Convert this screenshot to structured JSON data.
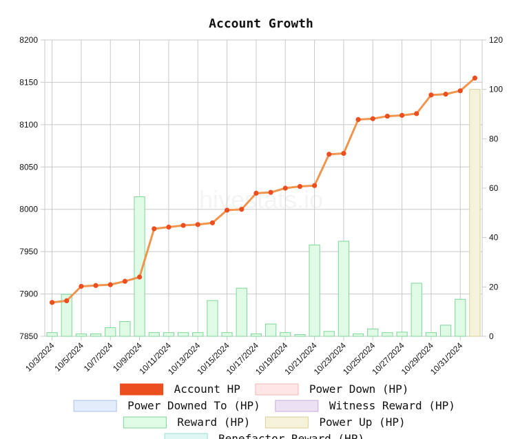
{
  "chart_data": {
    "type": "bar+line",
    "title": "Account Growth",
    "watermark": "hivestats.io",
    "x": [
      "10/3/2024",
      "10/4/2024",
      "10/5/2024",
      "10/6/2024",
      "10/7/2024",
      "10/8/2024",
      "10/9/2024",
      "10/10/2024",
      "10/11/2024",
      "10/12/2024",
      "10/13/2024",
      "10/14/2024",
      "10/15/2024",
      "10/16/2024",
      "10/17/2024",
      "10/18/2024",
      "10/19/2024",
      "10/20/2024",
      "10/21/2024",
      "10/22/2024",
      "10/23/2024",
      "10/24/2024",
      "10/25/2024",
      "10/26/2024",
      "10/27/2024",
      "10/28/2024",
      "10/29/2024",
      "10/30/2024",
      "10/31/2024",
      "11/1/2024"
    ],
    "x_tick_labels": [
      "10/3/2024",
      "10/5/2024",
      "10/7/2024",
      "10/9/2024",
      "10/11/2024",
      "10/13/2024",
      "10/15/2024",
      "10/17/2024",
      "10/19/2024",
      "10/21/2024",
      "10/23/2024",
      "10/25/2024",
      "10/27/2024",
      "10/29/2024",
      "10/31/2024"
    ],
    "y_left": {
      "min": 7850,
      "max": 8200,
      "ticks": [
        7850,
        7900,
        7950,
        8000,
        8050,
        8100,
        8150,
        8200
      ]
    },
    "y_right": {
      "min": 0,
      "max": 120,
      "ticks": [
        0,
        20,
        40,
        60,
        80,
        100,
        120
      ]
    },
    "grid": true,
    "legend_position": "bottom",
    "series": [
      {
        "name": "Account HP",
        "kind": "line",
        "axis": "left",
        "color": "#f0954d",
        "point_color": "#ec4f1f",
        "values": [
          7890,
          7892,
          7909,
          7910,
          7911,
          7915,
          7920,
          7977,
          7979,
          7981,
          7982,
          7984,
          7999,
          8000,
          8019,
          8020,
          8025,
          8027,
          8028,
          8065,
          8066,
          8106,
          8107,
          8110,
          8111,
          8113,
          8135,
          8136,
          8140,
          8155
        ]
      },
      {
        "name": "Reward (HP)",
        "kind": "bar",
        "axis": "right",
        "color": "#dffbe6",
        "border": "#7fd69a",
        "values": [
          1.5,
          17,
          1,
          1,
          3.5,
          6,
          56.5,
          1.5,
          1.5,
          1.5,
          1.5,
          14.5,
          1.5,
          19.5,
          1,
          5,
          1.5,
          0.7,
          37,
          2,
          38.5,
          1,
          3,
          1.5,
          1.7,
          21.5,
          1.5,
          4.5,
          15,
          0
        ]
      },
      {
        "name": "Power Up (HP)",
        "kind": "bar",
        "axis": "right",
        "color": "#f6f2d9",
        "border": "#d9cf9a",
        "values": [
          0,
          0,
          0,
          0,
          0,
          0,
          0,
          0,
          0,
          0,
          0,
          0,
          0,
          0,
          0,
          0,
          0,
          0,
          0,
          0,
          0,
          0,
          0,
          0,
          0,
          0,
          0,
          0,
          0,
          100
        ]
      }
    ],
    "legend": [
      {
        "label": "Account HP",
        "fill": "#ec4f1f",
        "stroke": "#ec4f1f"
      },
      {
        "label": "Power Down (HP)",
        "fill": "#ffe6e6",
        "stroke": "#f5b5b5"
      },
      {
        "label": "Power Downed To (HP)",
        "fill": "#e3ecfb",
        "stroke": "#a9c0ea"
      },
      {
        "label": "Witness Reward (HP)",
        "fill": "#ece0f3",
        "stroke": "#c8a9dd"
      },
      {
        "label": "Reward (HP)",
        "fill": "#dffbe6",
        "stroke": "#7fd69a"
      },
      {
        "label": "Power Up (HP)",
        "fill": "#f6f2d9",
        "stroke": "#d9cf9a"
      },
      {
        "label": "Benefactor Reward (HP)",
        "fill": "#def7f4",
        "stroke": "#9adfd6"
      }
    ]
  }
}
